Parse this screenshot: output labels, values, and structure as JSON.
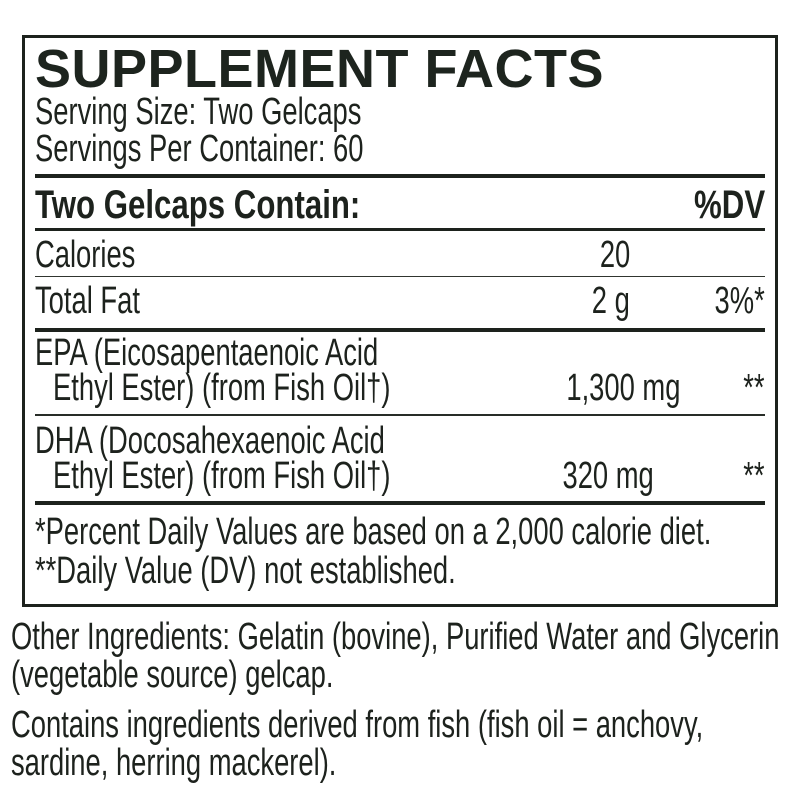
{
  "theme": {
    "ink_color": "#1d221d",
    "background_color": "#ffffff"
  },
  "panel": {
    "title": "SUPPLEMENT FACTS",
    "serving_size": "Serving Size: Two Gelcaps",
    "servings_per_container": "Servings Per Container: 60",
    "columns": {
      "contain": "Two Gelcaps Contain:",
      "dv": "%DV"
    },
    "rows": {
      "calories": {
        "name": "Calories",
        "amount": "20",
        "dv": ""
      },
      "total_fat": {
        "name": "Total Fat",
        "amount": "2 g",
        "dv": "3%*"
      },
      "epa": {
        "name_line1": "EPA (Eicosapentaenoic Acid",
        "name_line2": "Ethyl Ester) (from Fish Oil†)",
        "amount": "1,300 mg",
        "dv": "**"
      },
      "dha": {
        "name_line1": "DHA (Docosahexaenoic Acid",
        "name_line2": "Ethyl Ester) (from Fish Oil†)",
        "amount": "320 mg",
        "dv": "**"
      }
    },
    "footnotes": {
      "line1": "*Percent Daily Values are based on a 2,000 calorie diet.",
      "line2": "**Daily Value (DV) not established."
    }
  },
  "other_ingredients": {
    "line1": "Other Ingredients: Gelatin (bovine), Purified Water and Glycerin",
    "line2": "(vegetable source) gelcap."
  },
  "contains_statement": {
    "line1": "Contains ingredients derived from fish (fish oil = anchovy,",
    "line2": "sardine, herring mackerel)."
  }
}
